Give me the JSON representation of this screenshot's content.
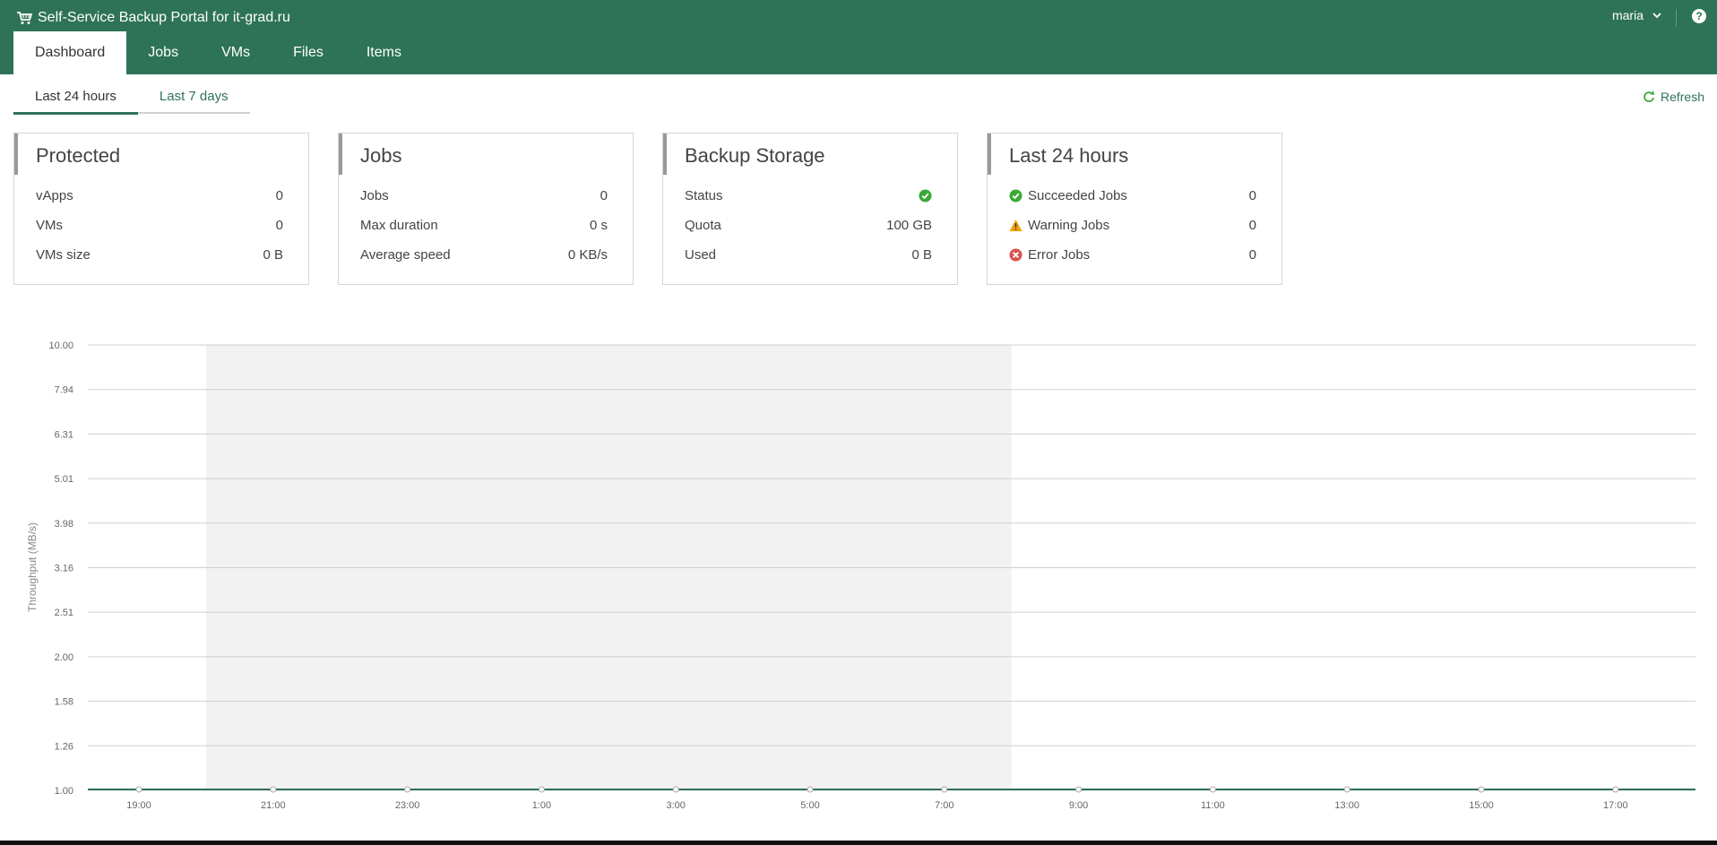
{
  "app": {
    "title": "Self-Service Backup Portal for it-grad.ru",
    "user": "maria",
    "help": "?"
  },
  "nav": {
    "tabs": [
      "Dashboard",
      "Jobs",
      "VMs",
      "Files",
      "Items"
    ],
    "active": "Dashboard"
  },
  "period_tabs": {
    "items": [
      "Last 24 hours",
      "Last 7 days"
    ],
    "active": "Last 24 hours"
  },
  "refresh_label": "Refresh",
  "cards": {
    "protected": {
      "title": "Protected",
      "rows": [
        {
          "label": "vApps",
          "value": "0"
        },
        {
          "label": "VMs",
          "value": "0"
        },
        {
          "label": "VMs size",
          "value": "0 B"
        }
      ]
    },
    "jobs": {
      "title": "Jobs",
      "rows": [
        {
          "label": "Jobs",
          "value": "0"
        },
        {
          "label": "Max duration",
          "value": "0 s"
        },
        {
          "label": "Average speed",
          "value": "0 KB/s"
        }
      ]
    },
    "storage": {
      "title": "Backup Storage",
      "rows": [
        {
          "label": "Status",
          "value": "",
          "icon": "ok-check-icon"
        },
        {
          "label": "Quota",
          "value": "100 GB"
        },
        {
          "label": "Used",
          "value": "0 B"
        }
      ]
    },
    "last24": {
      "title": "Last 24 hours",
      "rows": [
        {
          "label": "Succeeded Jobs",
          "value": "0",
          "icon": "success-icon"
        },
        {
          "label": "Warning Jobs",
          "value": "0",
          "icon": "warning-icon"
        },
        {
          "label": "Error Jobs",
          "value": "0",
          "icon": "error-icon"
        }
      ]
    }
  },
  "colors": {
    "brand": "#2e7357",
    "success": "#3aaa35",
    "warning": "#f0a30a",
    "error": "#d9534f",
    "shade": "#f2f2f2"
  },
  "chart_data": {
    "type": "line",
    "ylabel": "Throughput (MB/s)",
    "yticks": [
      "10.00",
      "7.94",
      "6.31",
      "5.01",
      "3.98",
      "3.16",
      "2.51",
      "2.00",
      "1.58",
      "1.26",
      "1.00"
    ],
    "yscale": "log",
    "ylim": [
      1.0,
      10.0
    ],
    "xticks": [
      "19:00",
      "21:00",
      "23:00",
      "1:00",
      "3:00",
      "5:00",
      "7:00",
      "9:00",
      "11:00",
      "13:00",
      "15:00",
      "17:00"
    ],
    "series": [
      {
        "values": [
          0,
          0,
          0,
          0,
          0,
          0,
          0,
          0,
          0,
          0,
          0,
          0
        ]
      }
    ],
    "shaded_band": {
      "from": "20:00",
      "to": "8:00"
    },
    "grid": true
  }
}
